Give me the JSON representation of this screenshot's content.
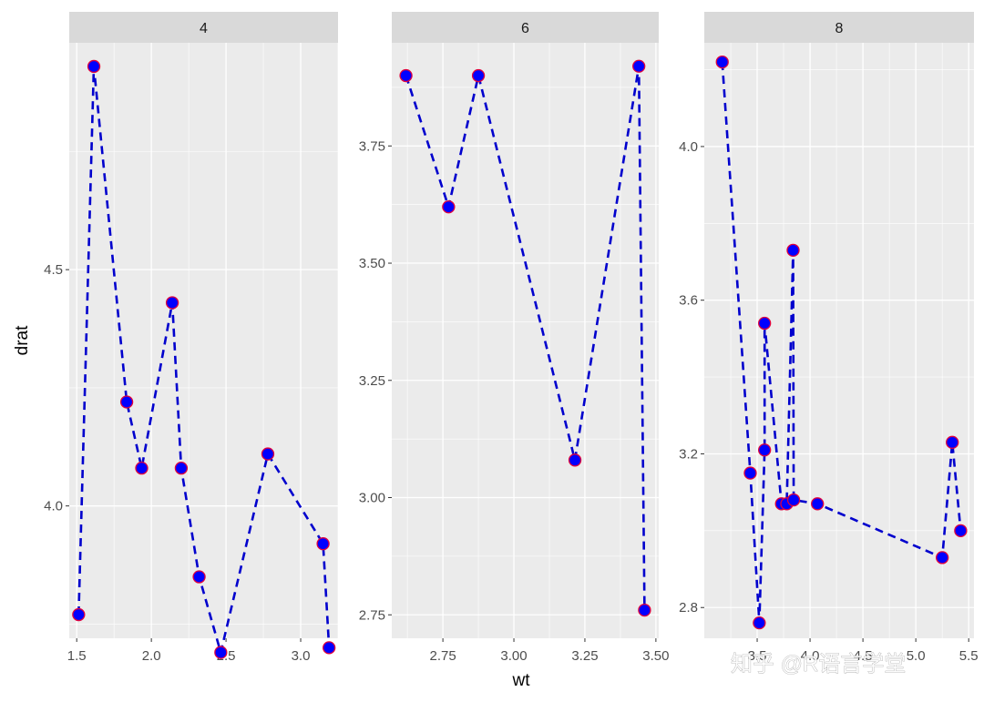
{
  "chart_data": {
    "type": "line",
    "facet_by": "cyl",
    "xlabel": "wt",
    "ylabel": "drat",
    "line_style": "dashed",
    "colors": {
      "line": "#0000cd",
      "point_fill": "#0000ff",
      "point_stroke": "#e0003c",
      "panel_bg": "#ebebeb",
      "strip_bg": "#d9d9d9",
      "grid": "#ffffff",
      "text": "#1a1a1a",
      "tick_text": "#4d4d4d"
    },
    "panels": [
      {
        "label": "4",
        "xlim": [
          1.45,
          3.25
        ],
        "ylim": [
          3.72,
          4.98
        ],
        "xticks": [
          1.5,
          2.0,
          2.5,
          3.0
        ],
        "xtick_labels": [
          "1.5",
          "2.0",
          "2.5",
          "3.0"
        ],
        "yticks": [
          4.0,
          4.5
        ],
        "ytick_labels": [
          "4.0",
          "4.5"
        ],
        "x": [
          1.513,
          1.615,
          1.835,
          1.935,
          2.14,
          2.2,
          2.32,
          2.465,
          2.78,
          3.15,
          3.19
        ],
        "y": [
          3.77,
          4.93,
          4.22,
          4.08,
          4.43,
          4.08,
          3.85,
          3.69,
          4.11,
          3.92,
          3.7
        ]
      },
      {
        "label": "6",
        "xlim": [
          2.57,
          3.51
        ],
        "ylim": [
          2.7,
          3.97
        ],
        "xticks": [
          2.75,
          3.0,
          3.25,
          3.5
        ],
        "xtick_labels": [
          "2.75",
          "3.00",
          "3.25",
          "3.50"
        ],
        "yticks": [
          2.75,
          3.0,
          3.25,
          3.5,
          3.75
        ],
        "ytick_labels": [
          "2.75",
          "3.00",
          "3.25",
          "3.50",
          "3.75"
        ],
        "x": [
          2.62,
          2.77,
          2.875,
          3.215,
          3.44,
          3.46
        ],
        "y": [
          3.9,
          3.62,
          3.9,
          3.08,
          3.92,
          2.76
        ]
      },
      {
        "label": "8",
        "xlim": [
          3.0,
          5.55
        ],
        "ylim": [
          2.72,
          4.27
        ],
        "xticks": [
          3.5,
          4.0,
          4.5,
          5.0,
          5.5
        ],
        "xtick_labels": [
          "3.5",
          "4.0",
          "4.5",
          "5.0",
          "5.5"
        ],
        "yticks": [
          2.8,
          3.2,
          3.6,
          4.0
        ],
        "ytick_labels": [
          "2.8",
          "3.2",
          "3.6",
          "4.0"
        ],
        "x": [
          3.17,
          3.435,
          3.52,
          3.57,
          3.57,
          3.73,
          3.78,
          3.84,
          3.845,
          4.07,
          5.25,
          5.345,
          5.424
        ],
        "y": [
          4.22,
          3.15,
          2.76,
          3.21,
          3.54,
          3.07,
          3.07,
          3.73,
          3.08,
          3.07,
          2.93,
          3.23,
          3.0
        ]
      }
    ]
  },
  "watermark": "知乎 @R语言学堂"
}
